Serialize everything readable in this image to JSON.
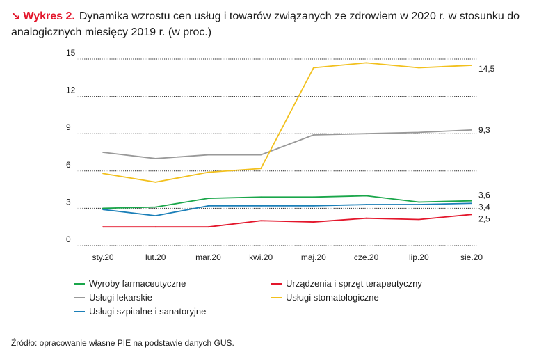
{
  "header": {
    "arrow": "↘",
    "number": "Wykres 2.",
    "title": "Dynamika wzrostu cen usług i towarów związanych ze zdrowiem w 2020 r. w stosunku do analogicznych miesięcy 2019 r. (w proc.)"
  },
  "chart_data": {
    "type": "line",
    "title": "Dynamika wzrostu cen usług i towarów związanych ze zdrowiem w 2020 r. w stosunku do analogicznych miesięcy 2019 r. (w proc.)",
    "categories": [
      "sty.20",
      "lut.20",
      "mar.20",
      "kwi.20",
      "maj.20",
      "cze.20",
      "lip.20",
      "sie.20"
    ],
    "ylim": [
      0,
      15
    ],
    "yticks": [
      0,
      3,
      6,
      9,
      12,
      15
    ],
    "grid": "horizontal dotted",
    "legend_position": "bottom",
    "series": [
      {
        "name": "Wyroby farmaceutyczne",
        "color": "#1aa64a",
        "values": [
          3.0,
          3.1,
          3.8,
          3.9,
          3.9,
          4.0,
          3.5,
          3.6
        ],
        "end_label": "3,6"
      },
      {
        "name": "Urządzenia i sprzęt terapeutyczny",
        "color": "#e3162b",
        "values": [
          1.5,
          1.5,
          1.5,
          2.0,
          1.9,
          2.2,
          2.1,
          2.5
        ],
        "end_label": "2,5"
      },
      {
        "name": "Usługi lekarskie",
        "color": "#999999",
        "values": [
          7.5,
          7.0,
          7.3,
          7.3,
          8.9,
          9.0,
          9.1,
          9.3
        ],
        "end_label": "9,3"
      },
      {
        "name": "Usługi stomatologiczne",
        "color": "#f2c01d",
        "values": [
          5.8,
          5.1,
          5.9,
          6.2,
          14.3,
          14.7,
          14.3,
          14.5
        ],
        "end_label": "14,5"
      },
      {
        "name": "Usługi szpitalne i sanatoryjne",
        "color": "#1b7fb8",
        "values": [
          2.9,
          2.4,
          3.2,
          3.2,
          3.2,
          3.3,
          3.3,
          3.4
        ],
        "end_label": "3,4"
      }
    ]
  },
  "source": "Źródło: opracowanie własne PIE na podstawie danych GUS."
}
